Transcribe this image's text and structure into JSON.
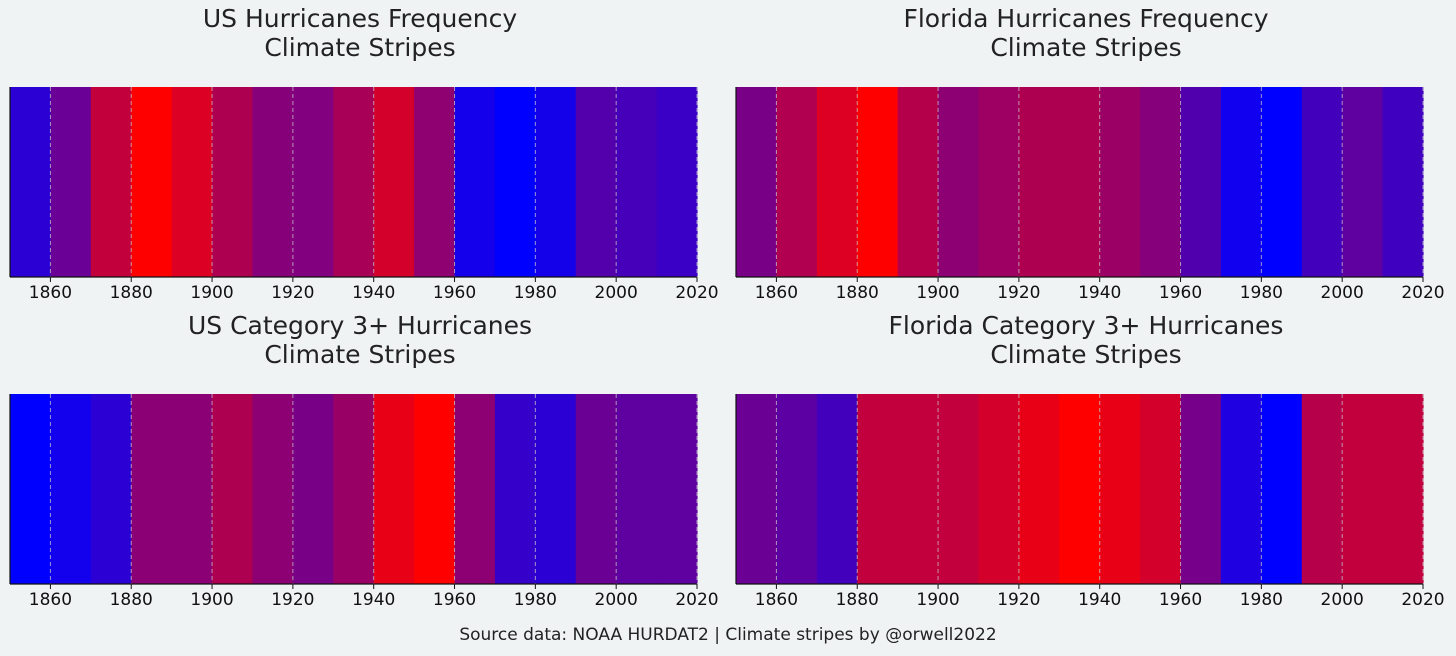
{
  "footer": "Source data: NOAA HURDAT2 | Climate stripes by @orwell2022",
  "chart_data": [
    {
      "type": "heatmap",
      "title_lines": [
        "US Hurricanes Frequency",
        "Climate Stripes"
      ],
      "xlim": [
        1850,
        2020
      ],
      "xticks": [
        1860,
        1880,
        1900,
        1920,
        1940,
        1960,
        1980,
        2000,
        2020
      ],
      "decades": [
        1850,
        1860,
        1870,
        1880,
        1890,
        1900,
        1910,
        1920,
        1930,
        1940,
        1950,
        1960,
        1970,
        1980,
        1990,
        2000,
        2010
      ],
      "colors": [
        "#2a00d4",
        "#6a0095",
        "#c2003c",
        "#ff0000",
        "#db0024",
        "#ae0050",
        "#86007a",
        "#820080",
        "#a80056",
        "#d3002c",
        "#8f0070",
        "#1400eb",
        "#0000ff",
        "#1500ea",
        "#5300ac",
        "#4600b9",
        "#3a00c5"
      ]
    },
    {
      "type": "heatmap",
      "title_lines": [
        "Florida Hurricanes Frequency",
        "Climate Stripes"
      ],
      "xlim": [
        1850,
        2020
      ],
      "xticks": [
        1860,
        1880,
        1900,
        1920,
        1940,
        1960,
        1980,
        2000,
        2020
      ],
      "decades": [
        1850,
        1860,
        1870,
        1880,
        1890,
        1900,
        1910,
        1920,
        1930,
        1940,
        1950,
        1960,
        1970,
        1980,
        1990,
        2000,
        2010
      ],
      "colors": [
        "#780087",
        "#b0004f",
        "#dd0022",
        "#ff0000",
        "#b4004b",
        "#8c0073",
        "#9d0062",
        "#ae0051",
        "#ae0051",
        "#9b0064",
        "#85007a",
        "#5100ae",
        "#1000ef",
        "#0000ff",
        "#4200bd",
        "#5f00a0",
        "#3f00c0"
      ]
    },
    {
      "type": "heatmap",
      "title_lines": [
        "US Category 3+ Hurricanes",
        "Climate Stripes"
      ],
      "xlim": [
        1850,
        2020
      ],
      "xticks": [
        1860,
        1880,
        1900,
        1920,
        1940,
        1960,
        1980,
        2000,
        2020
      ],
      "decades": [
        1850,
        1860,
        1870,
        1880,
        1890,
        1900,
        1910,
        1920,
        1930,
        1940,
        1950,
        1960,
        1970,
        1980,
        1990,
        2000,
        2010
      ],
      "colors": [
        "#0000ff",
        "#1300ec",
        "#2a00d5",
        "#8b0074",
        "#8b0074",
        "#ae0051",
        "#8c0073",
        "#780087",
        "#990066",
        "#e80017",
        "#ff0000",
        "#8c0073",
        "#3500ca",
        "#2a00d5",
        "#6b0094",
        "#5f00a0",
        "#5f00a0"
      ]
    },
    {
      "type": "heatmap",
      "title_lines": [
        "Florida Category 3+ Hurricanes",
        "Climate Stripes"
      ],
      "xlim": [
        1850,
        2020
      ],
      "xticks": [
        1860,
        1880,
        1900,
        1920,
        1940,
        1960,
        1980,
        2000,
        2020
      ],
      "decades": [
        1850,
        1860,
        1870,
        1880,
        1890,
        1900,
        1910,
        1920,
        1930,
        1940,
        1950,
        1960,
        1970,
        1980,
        1990,
        2000,
        2010
      ],
      "colors": [
        "#6b0094",
        "#5c00a3",
        "#4200bd",
        "#c2003d",
        "#c2003d",
        "#c2003d",
        "#d3002c",
        "#e80017",
        "#ff0000",
        "#e80017",
        "#d3002c",
        "#760089",
        "#1e00e1",
        "#0000ff",
        "#b7004a",
        "#c2003d",
        "#c2003d"
      ]
    }
  ]
}
